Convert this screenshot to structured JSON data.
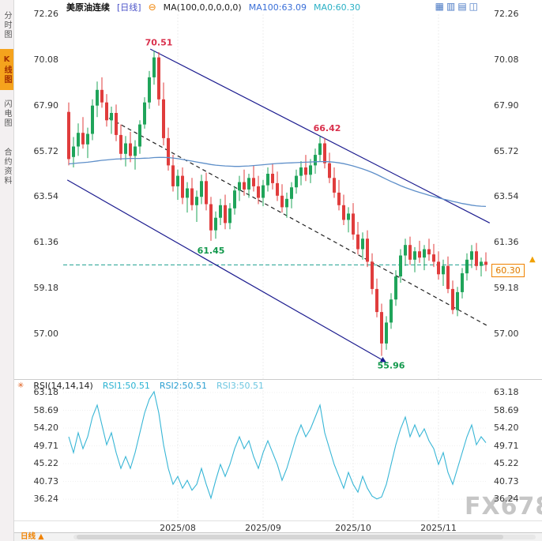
{
  "toolbar": {
    "symbol": "美原油连续",
    "period": "[日线]",
    "collapse_glyph": "⊖",
    "ma_settings": "MA(100,0,0,0,0,0)",
    "ma100_value": "MA100:63.09",
    "ma0_value": "MA0:60.30",
    "right_icons": [
      {
        "name": "layout-grid4-icon",
        "glyph": "▦"
      },
      {
        "name": "layout-rows-icon",
        "glyph": "▥"
      },
      {
        "name": "layout-cols-icon",
        "glyph": "▤"
      },
      {
        "name": "layout-dual-icon",
        "glyph": "◫"
      }
    ]
  },
  "sidebar": {
    "tabs": [
      {
        "label": "分时图",
        "active": false
      },
      {
        "label": "K线图",
        "active": true
      },
      {
        "label": "闪电图",
        "active": false
      },
      {
        "label": "合约资料",
        "active": false
      }
    ]
  },
  "rsi_legend": {
    "star_glyph": "✳",
    "name": "RSI(14,14,14)",
    "rsi1": "RSI1:50.51",
    "rsi2": "RSI2:50.51",
    "rsi3": "RSI3:50.51"
  },
  "bottom": {
    "period_label": "日线 ▲"
  },
  "watermark": "FX678",
  "current_price_label": "60.30",
  "price_marker_glyph": "▲",
  "colors": {
    "up": "#1fa45a",
    "down": "#e03c3c",
    "ma": "#5e8fc9",
    "channel": "#1c1c8f",
    "trend_dash": "#222222",
    "current_line": "#1d9f8e",
    "rsi": "#38b6d6",
    "grid": "#ececec",
    "accent": "#f08200"
  },
  "chart_data": [
    {
      "type": "candlestick",
      "title": "美原油连续 日线",
      "ylabel": "价格",
      "ylim": [
        55.5,
        72.26
      ],
      "y_ticks": [
        "72.26",
        "70.08",
        "67.90",
        "65.72",
        "63.54",
        "61.36",
        "59.18",
        "57.00"
      ],
      "x_ticks": [
        {
          "label": "2025/08",
          "index": 23
        },
        {
          "label": "2025/09",
          "index": 41
        },
        {
          "label": "2025/10",
          "index": 60
        },
        {
          "label": "2025/11",
          "index": 78
        }
      ],
      "current_price": 60.3,
      "candles_ohlc": [
        [
          67.6,
          68.05,
          65.05,
          65.35
        ],
        [
          65.45,
          66.4,
          64.95,
          65.95
        ],
        [
          65.95,
          67.05,
          65.5,
          66.6
        ],
        [
          66.6,
          67.35,
          65.85,
          66.05
        ],
        [
          66.05,
          66.85,
          65.4,
          66.55
        ],
        [
          66.55,
          68.2,
          66.25,
          67.9
        ],
        [
          67.9,
          69.05,
          67.35,
          68.65
        ],
        [
          68.65,
          69.25,
          67.8,
          68.05
        ],
        [
          68.05,
          68.45,
          66.9,
          67.2
        ],
        [
          67.2,
          67.85,
          66.55,
          67.55
        ],
        [
          67.55,
          67.95,
          66.2,
          66.5
        ],
        [
          66.5,
          67.0,
          65.3,
          65.6
        ],
        [
          65.6,
          66.45,
          65.0,
          66.1
        ],
        [
          66.1,
          66.65,
          65.2,
          65.5
        ],
        [
          65.5,
          66.25,
          64.85,
          65.95
        ],
        [
          65.95,
          67.2,
          65.6,
          67.0
        ],
        [
          67.0,
          68.3,
          66.8,
          68.05
        ],
        [
          68.05,
          69.55,
          67.75,
          69.25
        ],
        [
          69.25,
          70.51,
          68.9,
          70.2
        ],
        [
          70.2,
          70.45,
          67.9,
          68.2
        ],
        [
          68.2,
          69.0,
          66.0,
          66.35
        ],
        [
          66.35,
          66.85,
          64.8,
          65.05
        ],
        [
          65.05,
          65.55,
          63.8,
          64.05
        ],
        [
          64.05,
          64.85,
          63.4,
          64.55
        ],
        [
          64.55,
          64.95,
          63.2,
          63.5
        ],
        [
          63.5,
          64.25,
          62.8,
          63.95
        ],
        [
          63.95,
          64.45,
          62.9,
          63.15
        ],
        [
          63.15,
          63.85,
          62.35,
          63.55
        ],
        [
          63.55,
          64.6,
          63.2,
          64.3
        ],
        [
          64.3,
          64.7,
          62.9,
          63.2
        ],
        [
          63.2,
          63.55,
          61.45,
          61.95
        ],
        [
          61.95,
          62.85,
          61.55,
          62.55
        ],
        [
          62.55,
          63.45,
          62.2,
          63.15
        ],
        [
          63.15,
          63.65,
          62.0,
          62.3
        ],
        [
          62.3,
          63.25,
          62.0,
          63.0
        ],
        [
          63.0,
          64.05,
          62.7,
          63.85
        ],
        [
          63.85,
          64.55,
          63.35,
          64.25
        ],
        [
          64.25,
          64.85,
          63.6,
          63.9
        ],
        [
          63.9,
          64.65,
          63.5,
          64.45
        ],
        [
          64.45,
          65.05,
          63.8,
          64.05
        ],
        [
          64.05,
          64.55,
          63.2,
          63.5
        ],
        [
          63.5,
          64.35,
          63.1,
          64.1
        ],
        [
          64.1,
          64.95,
          63.8,
          64.65
        ],
        [
          64.65,
          65.15,
          63.9,
          64.2
        ],
        [
          64.2,
          64.75,
          63.35,
          63.6
        ],
        [
          63.6,
          64.15,
          62.8,
          63.05
        ],
        [
          63.05,
          63.75,
          62.55,
          63.45
        ],
        [
          63.45,
          64.25,
          63.0,
          64.0
        ],
        [
          64.0,
          64.85,
          63.7,
          64.55
        ],
        [
          64.55,
          65.25,
          64.1,
          64.95
        ],
        [
          64.95,
          65.55,
          64.3,
          64.6
        ],
        [
          64.6,
          65.35,
          64.2,
          65.05
        ],
        [
          65.05,
          65.85,
          64.65,
          65.55
        ],
        [
          65.55,
          66.42,
          65.25,
          66.1
        ],
        [
          66.1,
          66.35,
          64.9,
          65.15
        ],
        [
          65.15,
          65.65,
          64.2,
          64.45
        ],
        [
          64.45,
          64.95,
          63.5,
          63.75
        ],
        [
          63.75,
          64.35,
          62.9,
          63.15
        ],
        [
          63.15,
          63.65,
          62.2,
          62.45
        ],
        [
          62.45,
          63.05,
          61.85,
          62.75
        ],
        [
          62.75,
          63.25,
          61.5,
          61.75
        ],
        [
          61.75,
          62.35,
          60.8,
          61.05
        ],
        [
          61.05,
          61.85,
          60.55,
          61.55
        ],
        [
          61.55,
          61.95,
          60.2,
          60.45
        ],
        [
          60.45,
          60.85,
          58.9,
          59.15
        ],
        [
          59.15,
          59.65,
          57.8,
          58.05
        ],
        [
          58.05,
          58.45,
          55.96,
          56.55
        ],
        [
          56.55,
          57.85,
          56.25,
          57.55
        ],
        [
          57.55,
          58.95,
          57.25,
          58.65
        ],
        [
          58.65,
          60.05,
          58.35,
          59.75
        ],
        [
          59.75,
          61.05,
          59.45,
          60.75
        ],
        [
          60.75,
          61.55,
          60.25,
          61.25
        ],
        [
          61.25,
          61.65,
          60.3,
          60.55
        ],
        [
          60.55,
          61.15,
          59.95,
          60.95
        ],
        [
          60.95,
          61.45,
          60.4,
          60.65
        ],
        [
          60.65,
          61.25,
          60.05,
          61.05
        ],
        [
          61.05,
          61.55,
          60.5,
          60.8
        ],
        [
          60.8,
          61.3,
          60.2,
          60.45
        ],
        [
          60.45,
          60.95,
          59.6,
          59.85
        ],
        [
          59.85,
          60.55,
          59.3,
          60.25
        ],
        [
          60.25,
          60.7,
          58.95,
          59.15
        ],
        [
          59.15,
          59.55,
          57.95,
          58.15
        ],
        [
          58.15,
          59.25,
          57.85,
          59.0
        ],
        [
          59.0,
          60.15,
          58.7,
          59.9
        ],
        [
          59.9,
          60.85,
          59.55,
          60.55
        ],
        [
          60.55,
          61.25,
          60.15,
          60.95
        ],
        [
          60.95,
          61.35,
          60.05,
          60.25
        ],
        [
          60.25,
          60.65,
          59.75,
          60.45
        ],
        [
          60.45,
          60.9,
          60.0,
          60.3
        ]
      ],
      "ma100_series": [
        65.12,
        65.14,
        65.16,
        65.18,
        65.2,
        65.23,
        65.26,
        65.29,
        65.31,
        65.33,
        65.35,
        65.36,
        65.37,
        65.38,
        65.38,
        65.38,
        65.39,
        65.4,
        65.42,
        65.43,
        65.43,
        65.42,
        65.4,
        65.37,
        65.33,
        65.29,
        65.25,
        65.21,
        65.17,
        65.13,
        65.09,
        65.06,
        65.04,
        65.02,
        65.01,
        65.0,
        65.0,
        65.01,
        65.02,
        65.04,
        65.06,
        65.08,
        65.1,
        65.12,
        65.14,
        65.15,
        65.16,
        65.17,
        65.18,
        65.19,
        65.2,
        65.21,
        65.22,
        65.23,
        65.23,
        65.22,
        65.2,
        65.17,
        65.13,
        65.08,
        65.02,
        64.95,
        64.88,
        64.8,
        64.71,
        64.61,
        64.5,
        64.39,
        64.28,
        64.18,
        64.08,
        63.99,
        63.91,
        63.83,
        63.76,
        63.69,
        63.62,
        63.56,
        63.5,
        63.44,
        63.39,
        63.33,
        63.28,
        63.23,
        63.19,
        63.15,
        63.12,
        63.1,
        63.09
      ],
      "annotations": [
        {
          "text": "70.51",
          "index": 19,
          "price": 70.51,
          "placement": "above",
          "color": "#d9304c"
        },
        {
          "text": "66.42",
          "index": 54.5,
          "price": 66.42,
          "placement": "above",
          "color": "#d9304c"
        },
        {
          "text": "61.45",
          "index": 30,
          "price": 61.45,
          "placement": "below",
          "color": "#12984c"
        },
        {
          "text": "55.96",
          "index": 68,
          "price": 55.96,
          "placement": "below",
          "color": "#12984c"
        }
      ],
      "trendlines": [
        {
          "name": "channel-upper",
          "from": [
            17.2,
            70.6
          ],
          "to": [
            88.8,
            62.3
          ],
          "dash": false,
          "arrow": false
        },
        {
          "name": "channel-lower",
          "from": [
            -0.3,
            64.35
          ],
          "to": [
            66.8,
            55.68
          ],
          "dash": false,
          "arrow": true
        },
        {
          "name": "inner-trendline",
          "from": [
            8.5,
            67.3
          ],
          "to": [
            88.3,
            57.4
          ],
          "dash": true,
          "arrow": false
        }
      ]
    },
    {
      "type": "line",
      "title": "RSI(14,14,14)",
      "ylim": [
        34,
        65
      ],
      "y_ticks": [
        "63.18",
        "58.69",
        "54.20",
        "49.71",
        "45.22",
        "40.73",
        "36.24"
      ],
      "values": [
        52,
        48,
        53,
        49,
        52,
        57,
        60,
        55,
        50,
        53,
        48,
        44,
        47,
        44,
        48,
        53,
        58,
        61.5,
        63.4,
        58,
        50,
        44,
        40,
        42,
        39,
        41,
        38.5,
        40,
        44,
        40,
        36.5,
        41,
        45,
        42,
        45,
        49,
        52,
        49,
        51,
        47,
        44,
        48,
        51,
        48,
        45,
        41,
        44,
        48,
        52,
        55,
        52,
        54,
        57,
        60,
        53,
        49,
        45,
        42,
        39,
        43,
        40,
        38,
        42,
        39,
        37,
        36.3,
        36.8,
        40,
        45,
        50,
        54,
        57,
        52,
        55,
        52,
        54,
        51,
        49,
        45,
        48,
        43,
        40,
        44,
        48,
        52,
        55,
        50,
        52,
        50.51
      ]
    }
  ]
}
